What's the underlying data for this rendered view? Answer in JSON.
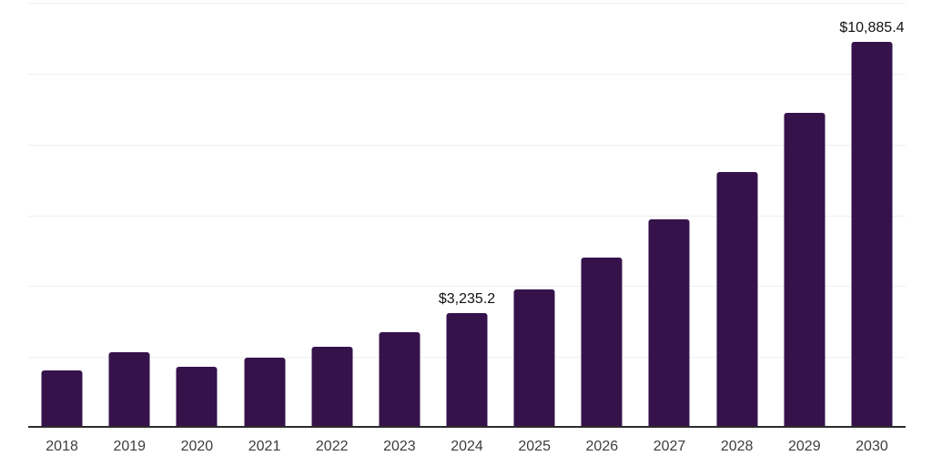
{
  "chart_data": {
    "type": "bar",
    "title": "",
    "xlabel": "",
    "ylabel": "",
    "categories": [
      "2018",
      "2019",
      "2020",
      "2021",
      "2022",
      "2023",
      "2024",
      "2025",
      "2026",
      "2027",
      "2028",
      "2029",
      "2030"
    ],
    "values": [
      1630,
      2125,
      1715,
      1970,
      2295,
      2700,
      3235.2,
      3900,
      4815,
      5890,
      7220,
      8890,
      10885.4
    ],
    "point_labels": [
      "",
      "",
      "",
      "",
      "",
      "",
      "$3,235.2",
      "",
      "",
      "",
      "",
      "",
      "$10,885.4"
    ],
    "ylim": [
      0,
      12000
    ],
    "gridline_step": 2000,
    "grid": "horizontal-only",
    "y_tick_labels_visible": false,
    "legend": "none",
    "colors": {
      "bar": "#36124b",
      "gridline": "#f0f0f0",
      "axis_line": "#2b2b2b",
      "tick_label": "#3d3d3d",
      "data_label": "#111111",
      "background": "#ffffff"
    }
  }
}
